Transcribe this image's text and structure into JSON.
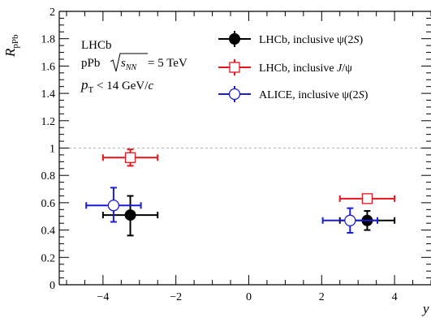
{
  "chart_data": {
    "type": "scatter",
    "xlabel": "y",
    "ylabel": "R",
    "ylabel_sub": "pPb",
    "xlim": [
      -5.2,
      5.0
    ],
    "ylim": [
      0,
      2
    ],
    "x_ticks": [
      "-4",
      "-2",
      "0",
      "2",
      "4"
    ],
    "y_ticks": [
      "0",
      "0.2",
      "0.4",
      "0.6",
      "0.8",
      "1",
      "1.2",
      "1.4",
      "1.6",
      "1.8",
      "2"
    ],
    "reference_line": 1,
    "annotations": {
      "experiment": "LHCb",
      "collision_prefix": "pPb",
      "energy_symbol": "s",
      "energy_sub": "NN",
      "energy_value": " = 5 TeV",
      "pt_symbol": "p",
      "pt_sub": "T",
      "pt_value": " < 14 GeV/",
      "pt_unit": "c"
    },
    "series": [
      {
        "name": "LHCb, inclusive ψ(2S)",
        "legend_prefix": "LHCb, inclusive ψ(2",
        "legend_italic": "S",
        "legend_suffix": ")",
        "color": "#000000",
        "marker": "filled-circle",
        "points": [
          {
            "x": -3.25,
            "y": 0.51,
            "xerr": [
              0.75,
              0.75
            ],
            "yerr": [
              0.15,
              0.14
            ]
          },
          {
            "x": 3.25,
            "y": 0.47,
            "xerr": [
              0.75,
              0.75
            ],
            "yerr": [
              0.07,
              0.07
            ]
          }
        ]
      },
      {
        "name": "LHCb, inclusive J/ψ",
        "legend_prefix": "LHCb, inclusive ",
        "legend_italic": "J",
        "legend_suffix": "/ψ",
        "color": "#e8141b",
        "marker": "open-square",
        "points": [
          {
            "x": -3.25,
            "y": 0.93,
            "xerr": [
              0.75,
              0.75
            ],
            "yerr": [
              0.06,
              0.06
            ]
          },
          {
            "x": 3.25,
            "y": 0.63,
            "xerr": [
              0.75,
              0.75
            ],
            "yerr": [
              0.02,
              0.02
            ]
          }
        ]
      },
      {
        "name": "ALICE, inclusive ψ(2S)",
        "legend_prefix": "ALICE, inclusive ψ(2",
        "legend_italic": "S",
        "legend_suffix": ")",
        "color": "#1b1bd9",
        "marker": "open-circle",
        "points": [
          {
            "x": -3.71,
            "y": 0.58,
            "xerr": [
              0.75,
              0.75
            ],
            "yerr": [
              0.12,
              0.13
            ]
          },
          {
            "x": 2.78,
            "y": 0.47,
            "xerr": [
              0.75,
              0.75
            ],
            "yerr": [
              0.09,
              0.09
            ]
          }
        ]
      }
    ]
  }
}
